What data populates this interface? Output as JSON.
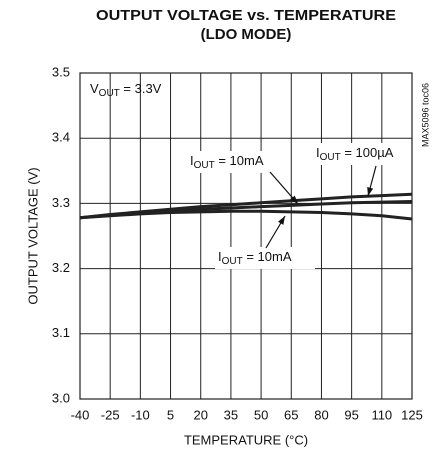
{
  "chart_data": {
    "type": "line",
    "title": [
      "OUTPUT VOLTAGE vs. TEMPERATURE",
      "(LDO MODE)"
    ],
    "x_label": "TEMPERATURE (°C)",
    "y_label": "OUTPUT VOLTAGE (V)",
    "side_note": "MAX5096 toc06",
    "x": [
      -40,
      -25,
      -10,
      5,
      20,
      35,
      50,
      65,
      80,
      95,
      110,
      125
    ],
    "series": [
      {
        "color": "#222222",
        "values": [
          3.278,
          3.283,
          3.287,
          3.291,
          3.295,
          3.298,
          3.301,
          3.304,
          3.307,
          3.31,
          3.312,
          3.314
        ]
      },
      {
        "color": "#222222",
        "values": [
          3.278,
          3.282,
          3.285,
          3.288,
          3.291,
          3.293,
          3.295,
          3.297,
          3.299,
          3.301,
          3.302,
          3.303
        ]
      },
      {
        "color": "#222222",
        "values": [
          3.278,
          3.281,
          3.284,
          3.286,
          3.287,
          3.288,
          3.288,
          3.287,
          3.286,
          3.284,
          3.281,
          3.276
        ]
      }
    ],
    "annotations": [
      {
        "parts": [
          "V",
          "OUT",
          " = 3.3V"
        ]
      },
      {
        "parts": [
          "I",
          "OUT",
          " = 10mA"
        ]
      },
      {
        "parts": [
          "I",
          "OUT",
          " = 100µA"
        ]
      },
      {
        "parts": [
          "I",
          "OUT",
          " = 10mA"
        ]
      }
    ],
    "xlim": [
      -40,
      125
    ],
    "xticks": [
      -40,
      -25,
      -10,
      5,
      20,
      35,
      50,
      65,
      80,
      95,
      110,
      125
    ],
    "ylim": [
      3.0,
      3.5
    ],
    "yticks": [
      {
        "value": 3.0,
        "label": "3.0"
      },
      {
        "value": 3.1,
        "label": "3.1"
      },
      {
        "value": 3.2,
        "label": "3.2"
      },
      {
        "value": 3.3,
        "label": "3.3"
      },
      {
        "value": 3.4,
        "label": "3.4"
      },
      {
        "value": 3.5,
        "label": "3.5"
      }
    ],
    "grid": true
  }
}
